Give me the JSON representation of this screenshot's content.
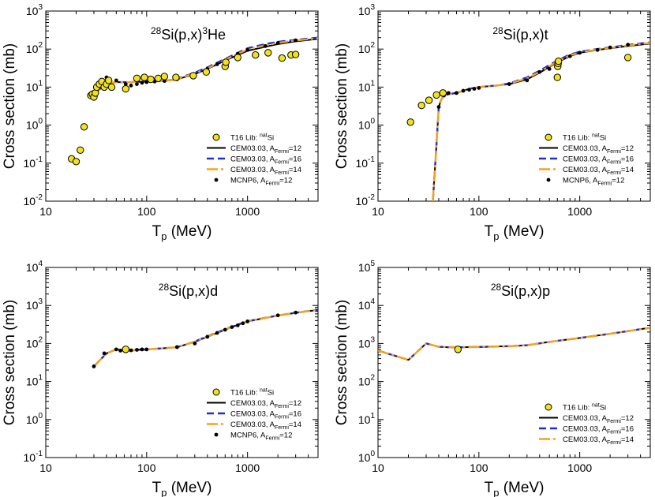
{
  "figure": {
    "x_axis_label": "T",
    "x_axis_subscript": "p",
    "x_axis_units": "(MeV)",
    "y_axis_label": "Cross section (mb)",
    "x_tick_labels": [
      "10",
      "100",
      "1000"
    ]
  },
  "chart_data": [
    {
      "type": "line",
      "title": {
        "mass": "28",
        "pre": "Si(p,x)",
        "sup": "3",
        "post": "He"
      },
      "xscale": "log",
      "yscale": "log",
      "xlim": [
        10,
        5000
      ],
      "ylim": [
        0.01,
        1000
      ],
      "y_tick_labels": [
        {
          "base": "10",
          "exp": "-2"
        },
        {
          "base": "10",
          "exp": "-1"
        },
        {
          "base": "10",
          "exp": "0"
        },
        {
          "base": "10",
          "exp": "1"
        },
        {
          "base": "10",
          "exp": "2"
        },
        {
          "base": "10",
          "exp": "3"
        }
      ],
      "legend": [
        {
          "kind": "data",
          "text": "T16 Lib: ",
          "sup": "nat",
          "tail": "Si"
        },
        {
          "kind": "black",
          "text": "CEM03.03, A",
          "sub": "Fermi",
          "tail": "=12"
        },
        {
          "kind": "blue",
          "text": "CEM03.03, A",
          "sub": "Fermi",
          "tail": "=16"
        },
        {
          "kind": "orange",
          "text": "CEM03.03, A",
          "sub": "Fermi",
          "tail": "=14"
        },
        {
          "kind": "dot",
          "text": "MCNP6, A",
          "sub": "Fermi",
          "tail": "=12"
        }
      ],
      "series": [
        {
          "name": "CEM03.03, AFermi=12",
          "x": [
            28,
            30,
            33,
            36,
            40,
            45,
            50,
            60,
            70,
            80,
            100,
            150,
            200,
            300,
            400,
            600,
            800,
            1000,
            1500,
            2000,
            3000,
            5000
          ],
          "y": [
            6,
            6.5,
            8,
            10,
            12,
            13,
            13.5,
            13.5,
            13.5,
            13.8,
            14,
            14.5,
            16,
            22,
            30,
            50,
            70,
            90,
            115,
            135,
            160,
            185
          ]
        },
        {
          "name": "CEM03.03, AFermi=16",
          "x": [
            28,
            30,
            33,
            36,
            40,
            45,
            50,
            60,
            70,
            80,
            100,
            150,
            200,
            300,
            400,
            600,
            800,
            1000,
            1500,
            2000,
            3000,
            5000
          ],
          "y": [
            6,
            6.5,
            8,
            10,
            12,
            13,
            13.5,
            13.5,
            13.5,
            13.8,
            14,
            14.5,
            16.5,
            24,
            33,
            55,
            80,
            105,
            135,
            155,
            175,
            200
          ]
        },
        {
          "name": "CEM03.03, AFermi=14",
          "x": [
            28,
            30,
            33,
            36,
            40,
            45,
            50,
            60,
            70,
            80,
            100,
            150,
            200,
            300,
            400,
            600,
            800,
            1000,
            1500,
            2000,
            3000,
            5000
          ],
          "y": [
            6,
            6.5,
            8,
            10,
            12,
            13,
            13.5,
            13.5,
            13.5,
            13.8,
            14,
            14.5,
            16.2,
            23,
            31,
            52,
            75,
            97,
            125,
            145,
            168,
            192
          ]
        },
        {
          "name": "MCNP6, AFermi=12",
          "x": [
            28,
            30,
            35,
            40,
            50,
            62,
            70,
            80,
            90,
            100,
            120,
            150,
            200,
            300,
            400,
            500,
            600,
            800,
            1000,
            1500,
            2000,
            3000
          ],
          "y": [
            6,
            6.5,
            12,
            18,
            15,
            12,
            11,
            12,
            13,
            13.5,
            14,
            14.5,
            16,
            22,
            30,
            40,
            50,
            75,
            95,
            120,
            145,
            170
          ]
        },
        {
          "name": "T16 Lib: natSi",
          "x": [
            18,
            20,
            22,
            24,
            28,
            29,
            30,
            31,
            32,
            34,
            36,
            38,
            40,
            42,
            45,
            62,
            80,
            95,
            110,
            130,
            150,
            195,
            290,
            390,
            600,
            610,
            800,
            1200,
            1600,
            2200,
            2700,
            3000
          ],
          "y": [
            0.13,
            0.11,
            0.22,
            0.9,
            6,
            6.5,
            5.5,
            7,
            10,
            12,
            14,
            10,
            12,
            15,
            10,
            9,
            17,
            18,
            16,
            17,
            19,
            18,
            20,
            25,
            35,
            45,
            60,
            70,
            80,
            58,
            70,
            72
          ]
        }
      ]
    },
    {
      "type": "line",
      "title": {
        "mass": "28",
        "pre": "Si(p,x)t",
        "sup": "",
        "post": ""
      },
      "xscale": "log",
      "yscale": "log",
      "xlim": [
        10,
        5000
      ],
      "ylim": [
        0.01,
        1000
      ],
      "y_tick_labels": [
        {
          "base": "10",
          "exp": "-2"
        },
        {
          "base": "10",
          "exp": "-1"
        },
        {
          "base": "10",
          "exp": "0"
        },
        {
          "base": "10",
          "exp": "1"
        },
        {
          "base": "10",
          "exp": "2"
        },
        {
          "base": "10",
          "exp": "3"
        }
      ],
      "legend": [
        {
          "kind": "data",
          "text": "T16 Lib: ",
          "sup": "nat",
          "tail": "Si"
        },
        {
          "kind": "black",
          "text": "CEM03.03, A",
          "sub": "Fermi",
          "tail": "=12"
        },
        {
          "kind": "blue",
          "text": "CEM03.03, A",
          "sub": "Fermi",
          "tail": "=16"
        },
        {
          "kind": "orange",
          "text": "CEM03.03, A",
          "sub": "Fermi",
          "tail": "=14"
        },
        {
          "kind": "dot",
          "text": "MCNP6, A",
          "sub": "Fermi",
          "tail": "=12"
        }
      ],
      "series": [
        {
          "name": "CEM03.03, AFermi=12",
          "x": [
            35,
            37,
            39,
            40,
            42,
            45,
            50,
            60,
            70,
            80,
            100,
            150,
            200,
            300,
            400,
            600,
            800,
            1000,
            1500,
            2000,
            3000,
            5000
          ],
          "y": [
            0.01,
            0.1,
            1,
            3,
            4.5,
            6,
            6.5,
            7,
            8,
            9,
            10,
            11,
            12,
            16,
            24,
            45,
            65,
            80,
            95,
            105,
            120,
            140
          ]
        },
        {
          "name": "CEM03.03, AFermi=16",
          "x": [
            35,
            37,
            39,
            40,
            42,
            45,
            50,
            60,
            70,
            80,
            100,
            150,
            200,
            300,
            400,
            600,
            800,
            1000,
            1500,
            2000,
            3000,
            5000
          ],
          "y": [
            0.01,
            0.1,
            1,
            3,
            4.5,
            6,
            6.5,
            7,
            8,
            9,
            10,
            11,
            12.5,
            18,
            27,
            50,
            72,
            85,
            100,
            110,
            128,
            150
          ]
        },
        {
          "name": "CEM03.03, AFermi=14",
          "x": [
            35,
            37,
            39,
            40,
            42,
            45,
            50,
            60,
            70,
            80,
            100,
            150,
            200,
            300,
            400,
            600,
            800,
            1000,
            1500,
            2000,
            3000,
            5000
          ],
          "y": [
            0.01,
            0.1,
            1,
            3,
            4.5,
            6,
            6.5,
            7,
            8,
            9,
            10,
            11,
            12.2,
            17,
            25,
            47,
            68,
            82,
            97,
            107,
            124,
            145
          ]
        },
        {
          "name": "MCNP6, AFermi=12",
          "x": [
            40,
            45,
            50,
            60,
            70,
            80,
            90,
            100,
            200,
            300,
            400,
            500,
            600,
            800,
            1000,
            1500,
            2000,
            3000
          ],
          "y": [
            3,
            6,
            7,
            7,
            8,
            8.5,
            9,
            9.5,
            12,
            15,
            25,
            30,
            45,
            65,
            80,
            95,
            110,
            130
          ]
        },
        {
          "name": "T16 Lib: natSi",
          "x": [
            21,
            27,
            32,
            38,
            44,
            600,
            605,
            610,
            615,
            3000
          ],
          "y": [
            1.2,
            3.3,
            4.5,
            6.2,
            7,
            18,
            35,
            42,
            48,
            60
          ]
        }
      ]
    },
    {
      "type": "line",
      "title": {
        "mass": "28",
        "pre": "Si(p,x)d",
        "sup": "",
        "post": ""
      },
      "xscale": "log",
      "yscale": "log",
      "xlim": [
        10,
        5000
      ],
      "ylim": [
        0.1,
        10000
      ],
      "y_tick_labels": [
        {
          "base": "10",
          "exp": "-1"
        },
        {
          "base": "10",
          "exp": "0"
        },
        {
          "base": "10",
          "exp": "1"
        },
        {
          "base": "10",
          "exp": "2"
        },
        {
          "base": "10",
          "exp": "3"
        },
        {
          "base": "10",
          "exp": "4"
        }
      ],
      "legend": [
        {
          "kind": "data",
          "text": "T16 Lib: ",
          "sup": "nat",
          "tail": "Si"
        },
        {
          "kind": "black",
          "text": "CEM03.03, A",
          "sub": "Fermi",
          "tail": "=12"
        },
        {
          "kind": "blue",
          "text": "CEM03.03, A",
          "sub": "Fermi",
          "tail": "=16"
        },
        {
          "kind": "orange",
          "text": "CEM03.03, A",
          "sub": "Fermi",
          "tail": "=14"
        },
        {
          "kind": "dot",
          "text": "MCNP6, A",
          "sub": "Fermi",
          "tail": "=12"
        }
      ],
      "series": [
        {
          "name": "CEM03.03, AFermi=12",
          "x": [
            30,
            40,
            50,
            60,
            70,
            80,
            100,
            150,
            200,
            300,
            400,
            500,
            600,
            800,
            1000,
            1500,
            2000,
            3000,
            5000
          ],
          "y": [
            25,
            55,
            70,
            65,
            65,
            68,
            70,
            75,
            80,
            110,
            150,
            190,
            230,
            310,
            380,
            470,
            540,
            640,
            760
          ]
        },
        {
          "name": "CEM03.03, AFermi=16",
          "x": [
            30,
            40,
            50,
            60,
            70,
            80,
            100,
            150,
            200,
            300,
            400,
            500,
            600,
            800,
            1000,
            1500,
            2000,
            3000,
            5000
          ],
          "y": [
            25,
            55,
            70,
            65,
            65,
            68,
            70,
            75,
            80,
            112,
            155,
            195,
            235,
            315,
            385,
            475,
            545,
            645,
            765
          ]
        },
        {
          "name": "CEM03.03, AFermi=14",
          "x": [
            30,
            40,
            50,
            60,
            70,
            80,
            100,
            150,
            200,
            300,
            400,
            500,
            600,
            800,
            1000,
            1500,
            2000,
            3000,
            5000
          ],
          "y": [
            25,
            55,
            70,
            65,
            65,
            68,
            70,
            75,
            80,
            111,
            152,
            192,
            232,
            312,
            382,
            472,
            542,
            642,
            762
          ]
        },
        {
          "name": "MCNP6, AFermi=12",
          "x": [
            30,
            38,
            50,
            55,
            62,
            70,
            80,
            90,
            100,
            200,
            300,
            400,
            500,
            600,
            700,
            800,
            900,
            1000,
            2000,
            3000
          ],
          "y": [
            25,
            55,
            70,
            65,
            65,
            66,
            68,
            70,
            70,
            80,
            100,
            150,
            190,
            230,
            270,
            300,
            340,
            380,
            550,
            650
          ]
        },
        {
          "name": "T16 Lib: natSi",
          "x": [
            62
          ],
          "y": [
            70
          ]
        }
      ]
    },
    {
      "type": "line",
      "title": {
        "mass": "28",
        "pre": "Si(p,x)p",
        "sup": "",
        "post": ""
      },
      "xscale": "log",
      "yscale": "log",
      "xlim": [
        10,
        5000
      ],
      "ylim": [
        1,
        100000
      ],
      "y_tick_labels": [
        {
          "base": "10",
          "exp": "0"
        },
        {
          "base": "10",
          "exp": "1"
        },
        {
          "base": "10",
          "exp": "2"
        },
        {
          "base": "10",
          "exp": "3"
        },
        {
          "base": "10",
          "exp": "4"
        },
        {
          "base": "10",
          "exp": "5"
        }
      ],
      "legend": [
        {
          "kind": "data",
          "text": "T16 Lib: ",
          "sup": "nat",
          "tail": "Si"
        },
        {
          "kind": "black",
          "text": "CEM03.03, A",
          "sub": "Fermi",
          "tail": "=12"
        },
        {
          "kind": "blue",
          "text": "CEM03.03, A",
          "sub": "Fermi",
          "tail": "=16"
        },
        {
          "kind": "orange",
          "text": "CEM03.03, A",
          "sub": "Fermi",
          "tail": "=14"
        }
      ],
      "series": [
        {
          "name": "CEM03.03, AFermi=12",
          "x": [
            10,
            20,
            30,
            40,
            50,
            70,
            100,
            200,
            300,
            500,
            1000,
            2000,
            5000
          ],
          "y": [
            650,
            370,
            1000,
            820,
            800,
            800,
            810,
            850,
            900,
            1100,
            1400,
            1800,
            2600
          ]
        },
        {
          "name": "CEM03.03, AFermi=16",
          "x": [
            10,
            20,
            30,
            40,
            50,
            70,
            100,
            200,
            300,
            500,
            1000,
            2000,
            5000
          ],
          "y": [
            650,
            370,
            1000,
            820,
            800,
            800,
            810,
            850,
            900,
            1100,
            1400,
            1800,
            2600
          ]
        },
        {
          "name": "CEM03.03, AFermi=14",
          "x": [
            10,
            20,
            30,
            40,
            50,
            70,
            100,
            200,
            300,
            500,
            1000,
            2000,
            5000
          ],
          "y": [
            650,
            370,
            1000,
            820,
            800,
            800,
            810,
            850,
            900,
            1100,
            1400,
            1800,
            2600
          ]
        },
        {
          "name": "T16 Lib: natSi",
          "x": [
            62
          ],
          "y": [
            700
          ]
        }
      ]
    }
  ],
  "style": {
    "data_fill": "#f2e21c",
    "black_line": "#000000",
    "blue_line": "#1f2fd6",
    "orange_line": "#f5a21b"
  }
}
